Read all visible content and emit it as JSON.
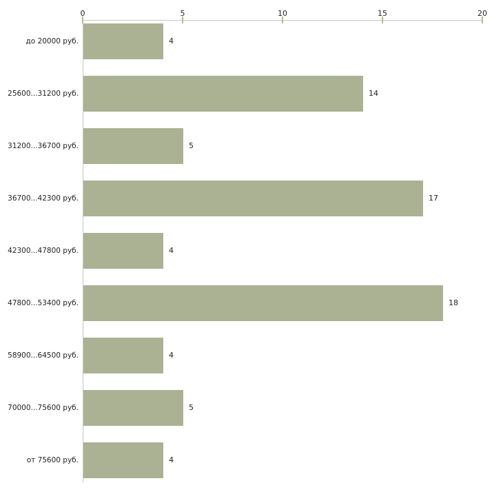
{
  "chart_data": {
    "type": "bar",
    "orientation": "horizontal",
    "title": "",
    "xlabel": "",
    "ylabel": "",
    "categories": [
      "до 20000 руб.",
      "25600...31200 руб.",
      "31200...36700 руб.",
      "36700...42300 руб.",
      "42300...47800 руб.",
      "47800...53400 руб.",
      "58900...64500 руб.",
      "70000...75600 руб.",
      "от 75600 руб."
    ],
    "values": [
      4,
      14,
      5,
      17,
      4,
      18,
      4,
      5,
      4
    ],
    "xlim": [
      0,
      20
    ],
    "x_ticks": [
      "0",
      "5",
      "10",
      "15",
      "20"
    ],
    "x_tick_values": [
      0,
      5,
      10,
      15,
      20
    ],
    "axis_position": "top",
    "grid": false,
    "legend": null,
    "colors": {
      "bar_fill": "#abb294",
      "tick_mark": "#b6ba88",
      "axis_line": "#c6c6c6",
      "text": "#1f1f1f",
      "background": "#ffffff"
    }
  }
}
